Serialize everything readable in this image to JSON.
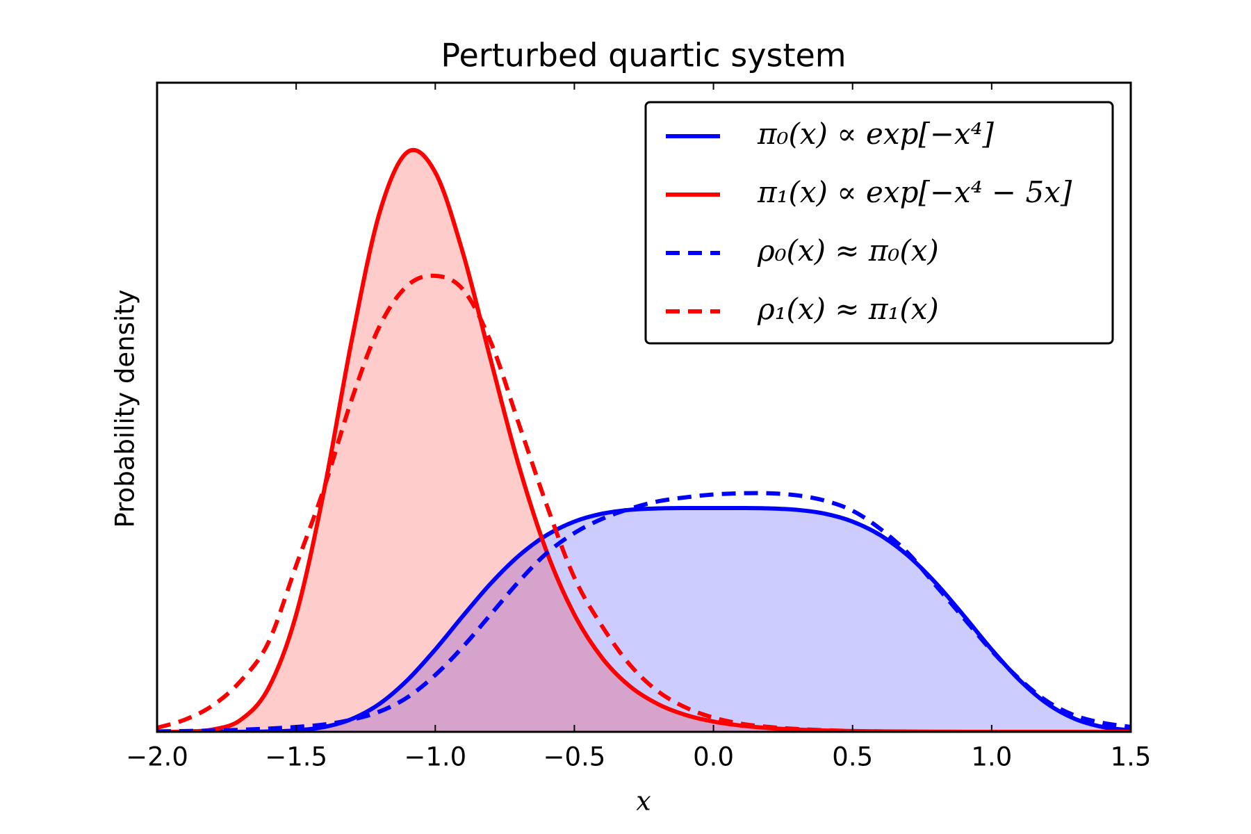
{
  "chart_data": {
    "type": "line",
    "title": "Perturbed quartic system",
    "xlabel": "x",
    "ylabel": "Probability density",
    "x": [
      -2.0,
      -1.9,
      -1.8,
      -1.7,
      -1.6,
      -1.5,
      -1.4,
      -1.3,
      -1.2,
      -1.1,
      -1.0,
      -0.9,
      -0.8,
      -0.7,
      -0.6,
      -0.5,
      -0.4,
      -0.3,
      -0.2,
      -0.1,
      0.0,
      0.1,
      0.2,
      0.3,
      0.4,
      0.5,
      0.6,
      0.7,
      0.8,
      0.9,
      1.0,
      1.1,
      1.2,
      1.3,
      1.4,
      1.5
    ],
    "xlim": [
      -2.0,
      1.5
    ],
    "ylim": [
      0,
      1.6
    ],
    "xticks": [
      {
        "value": -2.0,
        "label": "−2.0"
      },
      {
        "value": -1.5,
        "label": "−1.5"
      },
      {
        "value": -1.0,
        "label": "−1.0"
      },
      {
        "value": -0.5,
        "label": "−0.5"
      },
      {
        "value": 0.0,
        "label": "0.0"
      },
      0.5,
      {
        "value": 1.0,
        "label": "1.0"
      },
      1.5
    ],
    "legend": "upper right",
    "series": [
      {
        "name": "π₀(x) ∝ exp[−x⁴]",
        "color": "#0000ff",
        "dashed": false,
        "fill": true,
        "values": [
          0.0,
          0.0,
          0.0,
          0.0001,
          0.0008,
          0.0035,
          0.0118,
          0.0317,
          0.0693,
          0.1276,
          0.2029,
          0.2862,
          0.3662,
          0.4339,
          0.4846,
          0.5182,
          0.5377,
          0.5472,
          0.5507,
          0.5516,
          0.5516,
          0.5516,
          0.5507,
          0.5472,
          0.5377,
          0.5182,
          0.4846,
          0.4339,
          0.3662,
          0.2862,
          0.2029,
          0.1276,
          0.0693,
          0.0317,
          0.0118,
          0.0035
        ]
      },
      {
        "name": "π₁(x) ∝ exp[−x⁴ − 5x]",
        "color": "#ff0000",
        "dashed": false,
        "fill": true,
        "values": [
          0.0001,
          0.0007,
          0.0056,
          0.0293,
          0.1072,
          0.289,
          0.594,
          0.966,
          1.28,
          1.429,
          1.379,
          1.179,
          0.915,
          0.657,
          0.445,
          0.289,
          0.182,
          0.112,
          0.0685,
          0.0416,
          0.0253,
          0.0153,
          0.0093,
          0.0056,
          0.0033,
          0.0019,
          0.0011,
          0.0006,
          0.0003,
          0.0001,
          0.0001,
          0.0,
          0.0,
          0.0,
          0.0,
          0.0
        ]
      },
      {
        "name": "ρ₀(x) ≈ π₀(x)",
        "color": "#0000ff",
        "dashed": true,
        "fill": false,
        "values": [
          0.001,
          0.002,
          0.003,
          0.005,
          0.008,
          0.012,
          0.018,
          0.03,
          0.05,
          0.085,
          0.14,
          0.21,
          0.29,
          0.37,
          0.44,
          0.49,
          0.525,
          0.55,
          0.568,
          0.578,
          0.585,
          0.588,
          0.588,
          0.583,
          0.57,
          0.545,
          0.5,
          0.44,
          0.36,
          0.28,
          0.2,
          0.13,
          0.075,
          0.04,
          0.022,
          0.012
        ]
      },
      {
        "name": "ρ₁(x) ≈ π₁(x)",
        "color": "#ff0000",
        "dashed": true,
        "fill": false,
        "values": [
          0.01,
          0.03,
          0.065,
          0.125,
          0.22,
          0.41,
          0.6,
          0.82,
          1.0,
          1.1,
          1.124,
          1.09,
          0.96,
          0.76,
          0.56,
          0.38,
          0.26,
          0.165,
          0.1,
          0.06,
          0.035,
          0.02,
          0.012,
          0.007,
          0.004,
          0.002,
          0.001,
          0.0,
          0.0,
          0.0,
          0.0,
          0.0,
          0.0,
          0.0,
          0.0,
          0.0
        ]
      }
    ]
  }
}
